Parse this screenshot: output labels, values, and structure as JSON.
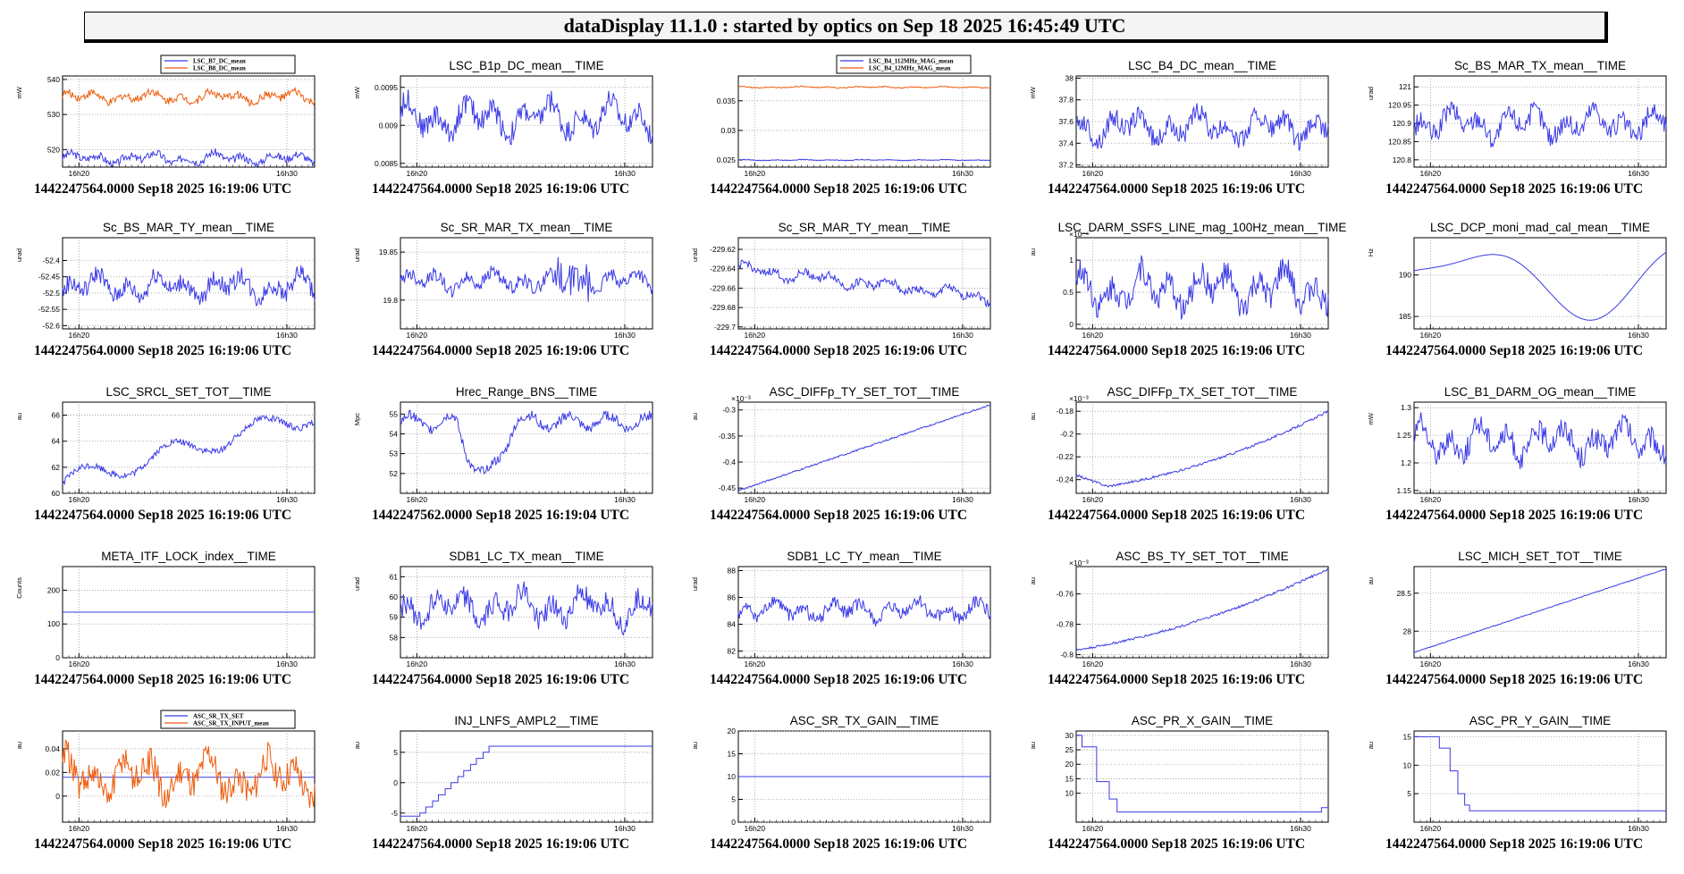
{
  "header": {
    "title": "dataDisplay 11.1.0 : started by optics on Sep 18 2025 16:45:49 UTC"
  },
  "colors": {
    "blue": "#3a3ae6",
    "orange": "#ee5b0b",
    "grid": "#9a9a9a"
  },
  "chart_data": [
    {
      "type": "line",
      "title": "",
      "unit": "mW",
      "ylim": [
        515,
        541
      ],
      "yticks": [
        520,
        530,
        540
      ],
      "xticks": [
        "16h20",
        "16h30"
      ],
      "legend": [
        "LSC_B7_DC_mean",
        "LSC_B8_DC_mean"
      ],
      "series": [
        {
          "name": "LSC_B7_DC_mean",
          "color": "blue",
          "base": 517.5,
          "amp": 1.6
        },
        {
          "name": "LSC_B8_DC_mean",
          "color": "orange",
          "base": 535,
          "amp": 1.6
        }
      ],
      "stamp": "1442247564.0000 Sep18 2025 16:19:06 UTC"
    },
    {
      "type": "line",
      "title": "LSC_B1p_DC_mean__TIME",
      "unit": "mW",
      "ylim": [
        0.00845,
        0.00965
      ],
      "yticks": [
        0.0085,
        0.009,
        0.0095
      ],
      "xticks": [
        "16h20",
        "16h30"
      ],
      "series": [
        {
          "color": "blue",
          "base": 0.0091,
          "amp": 0.00022
        }
      ],
      "stamp": "1442247564.0000 Sep18 2025 16:19:06 UTC"
    },
    {
      "type": "line",
      "title": "",
      "unit": "",
      "ylim": [
        0.0238,
        0.0392
      ],
      "yticks": [
        0.025,
        0.03,
        0.035
      ],
      "xticks": [
        "16h20",
        "16h30"
      ],
      "legend": [
        "LSC_B4_112MHz_MAG_mean",
        "LSC_B4_12MHz_MAG_mean"
      ],
      "series": [
        {
          "name": "LSC_B4_112MHz_MAG_mean",
          "color": "blue",
          "base": 0.025,
          "amp": 8e-05
        },
        {
          "name": "LSC_B4_12MHz_MAG_mean",
          "color": "orange",
          "base": 0.0373,
          "amp": 0.00012
        }
      ],
      "stamp": "1442247564.0000 Sep18 2025 16:19:06 UTC"
    },
    {
      "type": "line",
      "title": "LSC_B4_DC_mean__TIME",
      "unit": "mW",
      "ylim": [
        37.18,
        38.02
      ],
      "yticks": [
        37.2,
        37.4,
        37.6,
        37.8,
        38
      ],
      "xticks": [
        "16h20",
        "16h30"
      ],
      "series": [
        {
          "color": "blue",
          "base": 37.55,
          "amp": 0.13
        }
      ],
      "stamp": "1442247564.0000 Sep18 2025 16:19:06 UTC"
    },
    {
      "type": "line",
      "title": "Sc_BS_MAR_TX_mean__TIME",
      "unit": "urad",
      "ylim": [
        120.78,
        121.03
      ],
      "yticks": [
        120.8,
        120.85,
        120.9,
        120.95,
        121
      ],
      "xticks": [
        "16h20",
        "16h30"
      ],
      "series": [
        {
          "color": "blue",
          "base": 120.9,
          "amp": 0.04
        }
      ],
      "stamp": "1442247564.0000 Sep18 2025 16:19:06 UTC"
    },
    {
      "type": "line",
      "title": "Sc_BS_MAR_TY_mean__TIME",
      "unit": "urad",
      "ylim": [
        -52.61,
        -52.33
      ],
      "yticks": [
        -52.6,
        -52.55,
        -52.5,
        -52.45,
        -52.4
      ],
      "xticks": [
        "16h20",
        "16h30"
      ],
      "series": [
        {
          "color": "blue",
          "base": -52.48,
          "amp": 0.04
        }
      ],
      "stamp": "1442247564.0000 Sep18 2025 16:19:06 UTC"
    },
    {
      "type": "line",
      "title": "Sc_SR_MAR_TX_mean__TIME",
      "unit": "urad",
      "ylim": [
        19.77,
        19.865
      ],
      "yticks": [
        19.8,
        19.85
      ],
      "xticks": [
        "16h20",
        "16h30"
      ],
      "series": [
        {
          "color": "blue",
          "base": 19.82,
          "amp": 0.01
        }
      ],
      "stamp": "1442247564.0000 Sep18 2025 16:19:06 UTC"
    },
    {
      "type": "line",
      "title": "Sc_SR_MAR_TY_mean__TIME",
      "unit": "urad",
      "ylim": [
        -229.702,
        -229.608
      ],
      "yticks": [
        -229.7,
        -229.68,
        -229.66,
        -229.64,
        -229.62
      ],
      "xticks": [
        "16h20",
        "16h30"
      ],
      "series": [
        {
          "color": "blue",
          "base": -229.64,
          "amp": 0.006
        }
      ],
      "stamp": "1442247564.0000 Sep18 2025 16:19:06 UTC"
    },
    {
      "type": "line",
      "title": "LSC_DARM_SSFS_LINE_mag_100Hz_mean__TIME",
      "unit": "au",
      "ylim": [
        -0.07,
        1.35
      ],
      "yticks": [
        0,
        0.5,
        1
      ],
      "yexp": "×10⁻⁶",
      "xticks": [
        "16h20",
        "16h30"
      ],
      "series": [
        {
          "color": "blue",
          "base": 0.55,
          "amp": 0.3
        }
      ],
      "stamp": "1442247564.0000 Sep18 2025 16:19:06 UTC"
    },
    {
      "type": "line",
      "title": "LSC_DCP_moni_mad_cal_mean__TIME",
      "unit": "Hz",
      "ylim": [
        183.5,
        194.5
      ],
      "yticks": [
        185,
        190
      ],
      "xticks": [
        "16h20",
        "16h30"
      ],
      "series": [
        {
          "color": "blue",
          "base": 189,
          "amp": 0.1
        }
      ],
      "stamp": "1442247564.0000 Sep18 2025 16:19:06 UTC"
    },
    {
      "type": "line",
      "title": "LSC_SRCL_SET_TOT__TIME",
      "unit": "au",
      "ylim": [
        60,
        67
      ],
      "yticks": [
        60,
        62,
        64,
        66
      ],
      "xticks": [
        "16h20",
        "16h30"
      ],
      "series": [
        {
          "color": "blue",
          "base": 63,
          "amp": 0.25
        }
      ],
      "stamp": "1442247564.0000 Sep18 2025 16:19:06 UTC"
    },
    {
      "type": "line",
      "title": "Hrec_Range_BNS__TIME",
      "unit": "Mpc",
      "ylim": [
        51,
        55.6
      ],
      "yticks": [
        52,
        53,
        54,
        55
      ],
      "xticks": [
        "16h20",
        "16h30"
      ],
      "series": [
        {
          "color": "blue",
          "base": 54,
          "amp": 0.2
        }
      ],
      "stamp": "1442247562.0000 Sep18 2025 16:19:04 UTC"
    },
    {
      "type": "line",
      "title": "ASC_DIFFp_TY_SET_TOT__TIME",
      "unit": "au",
      "ylim": [
        -0.46,
        -0.285
      ],
      "yticks": [
        -0.45,
        -0.4,
        -0.35,
        -0.3
      ],
      "yexp": "×10⁻³",
      "xticks": [
        "16h20",
        "16h30"
      ],
      "series": [
        {
          "color": "blue",
          "base": -0.37,
          "amp": 0.001
        }
      ],
      "stamp": "1442247564.0000 Sep18 2025 16:19:06 UTC"
    },
    {
      "type": "line",
      "title": "ASC_DIFFp_TX_SET_TOT__TIME",
      "unit": "au",
      "ylim": [
        -0.252,
        -0.172
      ],
      "yticks": [
        -0.24,
        -0.22,
        -0.2,
        -0.18
      ],
      "yexp": "×10⁻³",
      "xticks": [
        "16h20",
        "16h30"
      ],
      "series": [
        {
          "color": "blue",
          "base": -0.21,
          "amp": 0.001
        }
      ],
      "stamp": "1442247564.0000 Sep18 2025 16:19:06 UTC"
    },
    {
      "type": "line",
      "title": "LSC_B1_DARM_OG_mean__TIME",
      "unit": "mW",
      "ylim": [
        1.145,
        1.31
      ],
      "yticks": [
        1.15,
        1.2,
        1.25,
        1.3
      ],
      "xticks": [
        "16h20",
        "16h30"
      ],
      "series": [
        {
          "color": "blue",
          "base": 1.24,
          "amp": 0.03
        }
      ],
      "stamp": "1442247564.0000 Sep18 2025 16:19:06 UTC"
    },
    {
      "type": "line",
      "title": "META_ITF_LOCK_index__TIME",
      "unit": "Counts",
      "ylim": [
        0,
        270
      ],
      "yticks": [
        0,
        100,
        200
      ],
      "xticks": [
        "16h20",
        "16h30"
      ],
      "series": [
        {
          "color": "blue",
          "base": 135,
          "amp": 0
        }
      ],
      "stamp": "1442247564.0000 Sep18 2025 16:19:06 UTC"
    },
    {
      "type": "line",
      "title": "SDB1_LC_TX_mean__TIME",
      "unit": "urad",
      "ylim": [
        57,
        61.5
      ],
      "yticks": [
        58,
        59,
        60,
        61
      ],
      "xticks": [
        "16h20",
        "16h30"
      ],
      "series": [
        {
          "color": "blue",
          "base": 59.5,
          "amp": 0.8
        }
      ],
      "stamp": "1442247564.0000 Sep18 2025 16:19:06 UTC"
    },
    {
      "type": "line",
      "title": "SDB1_LC_TY_mean__TIME",
      "unit": "urad",
      "ylim": [
        81.5,
        88.3
      ],
      "yticks": [
        82,
        84,
        86,
        88
      ],
      "xticks": [
        "16h20",
        "16h30"
      ],
      "series": [
        {
          "color": "blue",
          "base": 85,
          "amp": 0.7
        }
      ],
      "stamp": "1442247564.0000 Sep18 2025 16:19:06 UTC"
    },
    {
      "type": "line",
      "title": "ASC_BS_TY_SET_TOT__TIME",
      "unit": "au",
      "ylim": [
        -0.802,
        -0.742
      ],
      "yticks": [
        -0.8,
        -0.78,
        -0.76
      ],
      "yexp": "×10⁻³",
      "xticks": [
        "16h20",
        "16h30"
      ],
      "series": [
        {
          "color": "blue",
          "base": -0.77,
          "amp": 0.0008
        }
      ],
      "stamp": "1442247564.0000 Sep18 2025 16:19:06 UTC"
    },
    {
      "type": "line",
      "title": "LSC_MICH_SET_TOT__TIME",
      "unit": "au",
      "ylim": [
        27.65,
        28.85
      ],
      "yticks": [
        28,
        28.5
      ],
      "xticks": [
        "16h20",
        "16h30"
      ],
      "series": [
        {
          "color": "blue",
          "base": 28.2,
          "amp": 0.005
        }
      ],
      "stamp": "1442247564.0000 Sep18 2025 16:19:06 UTC"
    },
    {
      "type": "line",
      "title": "",
      "unit": "au",
      "ylim": [
        -0.022,
        0.055
      ],
      "yticks": [
        0,
        0.02,
        0.04
      ],
      "xticks": [
        "16h20",
        "16h30"
      ],
      "legend": [
        "ASC_SR_TX_SET",
        "ASC_SR_TX_INPUT_mean"
      ],
      "series": [
        {
          "name": "ASC_SR_TX_SET",
          "color": "blue",
          "base": 0.016,
          "amp": 0
        },
        {
          "name": "ASC_SR_TX_INPUT_mean",
          "color": "orange",
          "base": 0.016,
          "amp": 0.018
        }
      ],
      "stamp": "1442247564.0000 Sep18 2025 16:19:06 UTC"
    },
    {
      "type": "line",
      "title": "INJ_LNFS_AMPL2__TIME",
      "unit": "au",
      "ylim": [
        -6.5,
        8.5
      ],
      "yticks": [
        -5,
        0,
        5
      ],
      "xticks": [
        "16h20",
        "16h30"
      ],
      "series": [
        {
          "color": "blue",
          "base": 0,
          "amp": 0
        }
      ],
      "stamp": "1442247564.0000 Sep18 2025 16:19:06 UTC"
    },
    {
      "type": "line",
      "title": "ASC_SR_TX_GAIN__TIME",
      "unit": "au",
      "ylim": [
        0,
        20
      ],
      "yticks": [
        0,
        5,
        10,
        15,
        20
      ],
      "xticks": [
        "16h20",
        "16h30"
      ],
      "series": [
        {
          "color": "blue",
          "base": 10,
          "amp": 0
        }
      ],
      "stamp": "1442247564.0000 Sep18 2025 16:19:06 UTC"
    },
    {
      "type": "line",
      "title": "ASC_PR_X_GAIN__TIME",
      "unit": "au",
      "ylim": [
        0,
        31.5
      ],
      "yticks": [
        10,
        15,
        20,
        25,
        30
      ],
      "xticks": [
        "16h20",
        "16h30"
      ],
      "series": [
        {
          "color": "blue",
          "base": 0,
          "amp": 0
        }
      ],
      "stamp": "1442247564.0000 Sep18 2025 16:19:06 UTC"
    },
    {
      "type": "line",
      "title": "ASC_PR_Y_GAIN__TIME",
      "unit": "au",
      "ylim": [
        0,
        16
      ],
      "yticks": [
        5,
        10,
        15
      ],
      "xticks": [
        "16h20",
        "16h30"
      ],
      "series": [
        {
          "color": "blue",
          "base": 0,
          "amp": 0
        }
      ],
      "stamp": "1442247564.0000 Sep18 2025 16:19:06 UTC"
    }
  ]
}
